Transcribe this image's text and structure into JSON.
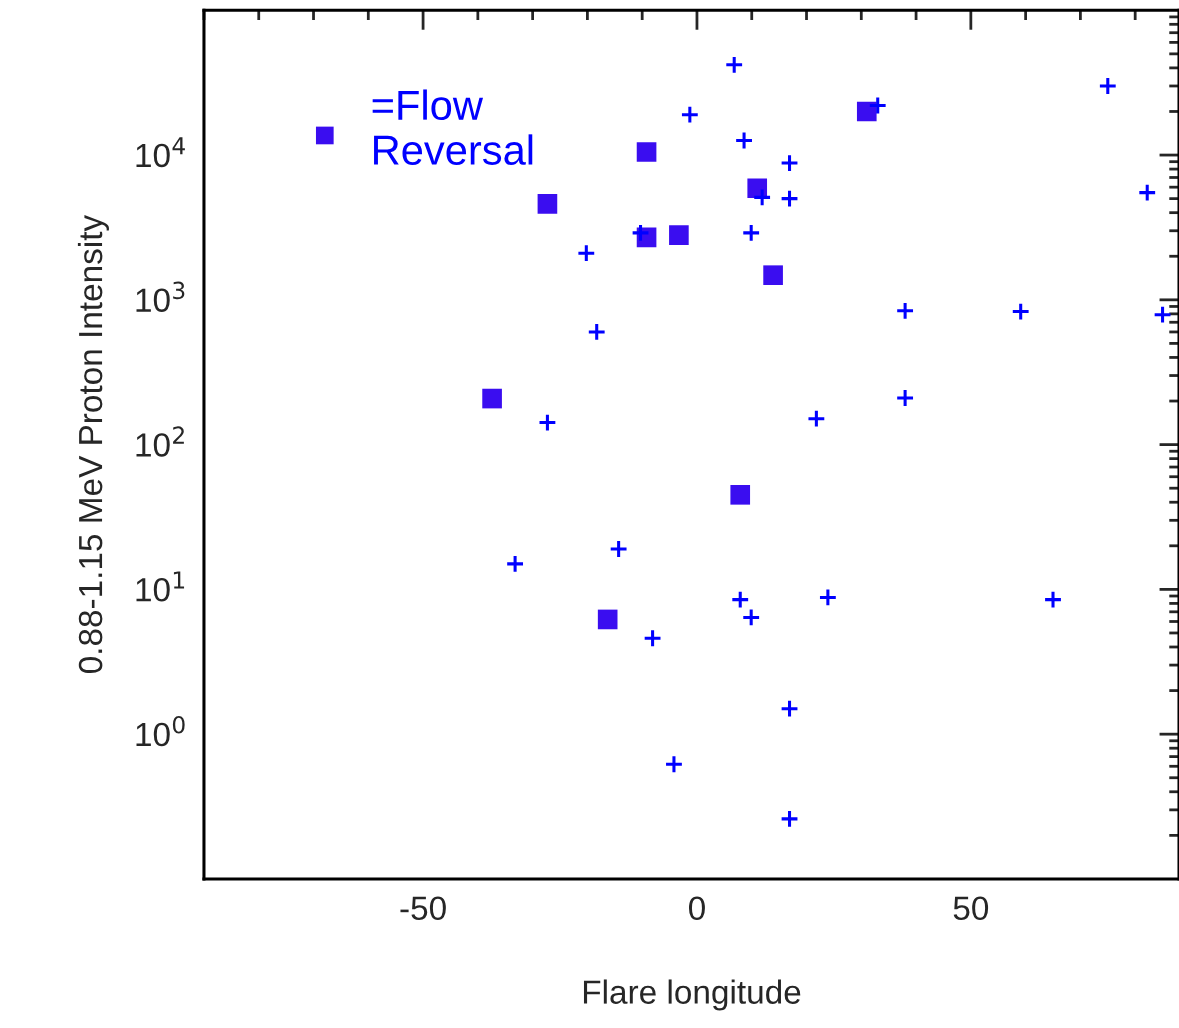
{
  "chart_data": {
    "type": "scatter",
    "xlabel": "Flare longitude",
    "ylabel": "0.88-1.15 MeV Proton Intensity",
    "log": "y",
    "xlim": [
      -90,
      88
    ],
    "ylim": [
      0.1,
      100000
    ],
    "xticks": [
      -50,
      0,
      50
    ],
    "yticks": [
      {
        "value": 1,
        "label": "10$^{0}$"
      },
      {
        "value": 10,
        "label": "10$^{1}$"
      },
      {
        "value": 100,
        "label": "10$^{2}$"
      },
      {
        "value": 1000,
        "label": "10$^{3}$"
      },
      {
        "value": 10000,
        "label": "10$^{4}$"
      }
    ],
    "grid": false,
    "legend": "top left",
    "series": [
      {
        "name": "=Flow\nReversal",
        "color": "#3a0df0",
        "marker": "square",
        "x": [
          -9.2,
          -27.3,
          -9.2,
          -3.3,
          11,
          13.9,
          31,
          -37.4,
          7.9,
          -16.3
        ],
        "values": [
          10500,
          4600,
          2700,
          2800,
          5900,
          1480,
          20000,
          208,
          45,
          6.2
        ]
      },
      {
        "color": "#0000ff",
        "marker": "cross",
        "x": [
          6.8,
          -1.3,
          8.6,
          16.9,
          33,
          75,
          82.2,
          11.9,
          16.9,
          -10.3,
          9.9,
          -20.2,
          -18.3,
          38,
          59.1,
          85,
          -27.3,
          21.8,
          38,
          -33.2,
          -14.3,
          7.9,
          23.9,
          65,
          9.9,
          -8.1,
          16.9,
          -4.2,
          16.9
        ],
        "values": [
          42000,
          19000,
          12600,
          8800,
          22000,
          30000,
          5500,
          5100,
          5000,
          2900,
          2900,
          2100,
          600,
          840,
          830,
          790,
          142,
          151,
          210,
          15,
          19,
          8.5,
          8.8,
          8.5,
          6.4,
          4.6,
          1.5,
          0.62,
          0.26
        ]
      }
    ]
  }
}
